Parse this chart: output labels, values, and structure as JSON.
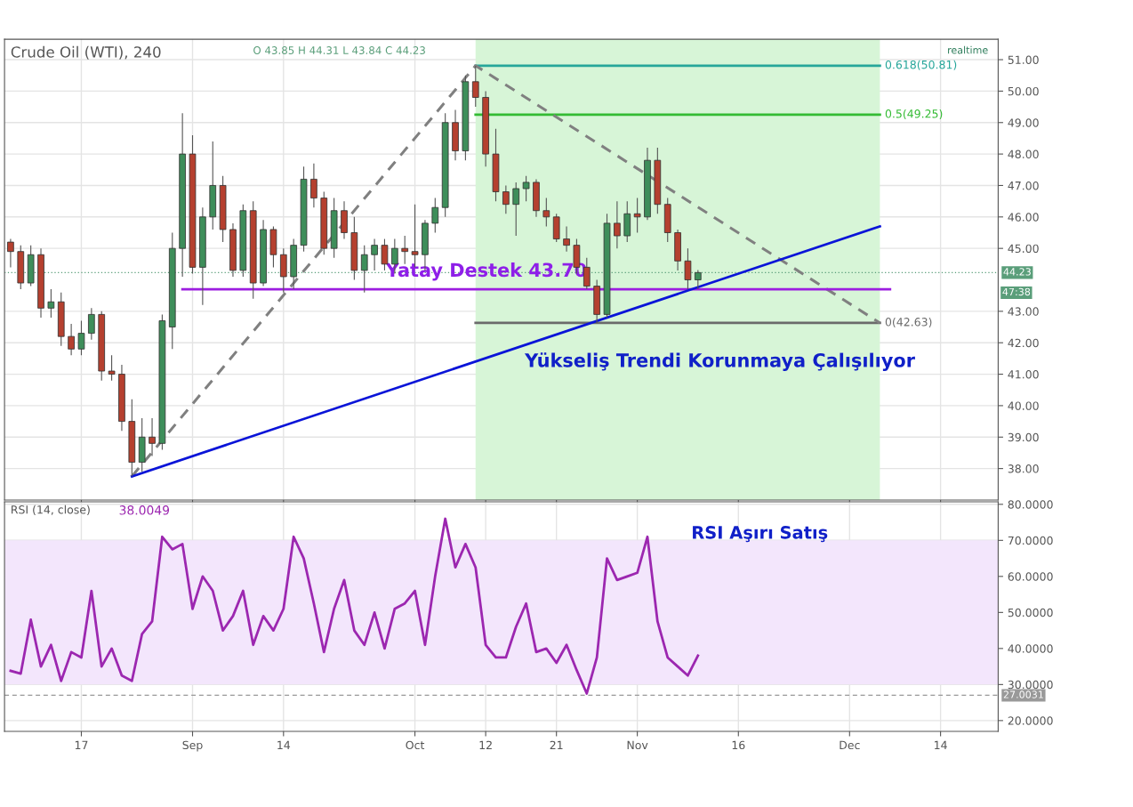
{
  "chart_data": [
    {
      "type": "candlestick",
      "title": "Crude Oil (WTI), 240",
      "subtitle": "O 43.85 H 44.31 L 43.84 C 44.23",
      "categories": [
        null,
        null,
        null,
        null,
        null,
        null,
        null,
        null,
        null,
        null,
        null,
        null,
        null,
        null,
        null,
        null,
        null,
        null,
        null,
        null,
        null,
        null,
        null,
        null,
        null,
        null,
        null,
        null,
        null,
        null,
        null,
        null,
        null,
        null,
        null,
        null,
        null,
        null,
        null,
        null,
        null,
        null,
        null,
        null,
        null,
        null,
        null,
        null,
        null,
        null,
        null,
        null,
        null,
        null,
        null,
        null,
        null,
        null,
        null,
        null,
        null,
        null,
        null,
        null,
        null,
        null,
        null,
        null,
        null,
        null,
        null,
        null,
        null,
        null,
        null,
        null,
        null,
        null,
        null,
        null,
        null,
        null,
        null,
        null,
        null,
        null,
        null,
        null,
        null,
        null,
        null,
        null,
        null,
        null,
        null,
        null,
        null,
        null
      ],
      "ohlc": [
        [
          45.2,
          45.3,
          44.4,
          44.9
        ],
        [
          44.9,
          45.1,
          43.7,
          43.9
        ],
        [
          43.9,
          45.1,
          43.8,
          44.8
        ],
        [
          44.8,
          45.0,
          42.8,
          43.1
        ],
        [
          43.1,
          43.7,
          42.8,
          43.3
        ],
        [
          43.3,
          43.6,
          41.9,
          42.2
        ],
        [
          42.2,
          42.6,
          41.6,
          41.8
        ],
        [
          41.8,
          42.7,
          41.6,
          42.3
        ],
        [
          42.3,
          43.1,
          42.1,
          42.9
        ],
        [
          42.9,
          43.0,
          40.8,
          41.1
        ],
        [
          41.1,
          41.6,
          40.8,
          41.0
        ],
        [
          41.0,
          41.3,
          39.2,
          39.5
        ],
        [
          39.5,
          40.2,
          37.75,
          38.2
        ],
        [
          38.2,
          39.6,
          37.9,
          39.0
        ],
        [
          39.0,
          39.6,
          38.4,
          38.8
        ],
        [
          38.8,
          42.9,
          38.6,
          42.7
        ],
        [
          42.5,
          45.5,
          41.8,
          45.0
        ],
        [
          45.0,
          49.3,
          44.1,
          48.0
        ],
        [
          48.0,
          48.6,
          44.2,
          44.4
        ],
        [
          44.4,
          46.3,
          43.2,
          46.0
        ],
        [
          46.0,
          48.4,
          45.6,
          47.0
        ],
        [
          47.0,
          47.3,
          45.2,
          45.6
        ],
        [
          45.6,
          45.8,
          44.1,
          44.3
        ],
        [
          44.3,
          46.4,
          44.1,
          46.2
        ],
        [
          46.2,
          46.5,
          43.4,
          43.9
        ],
        [
          43.9,
          45.9,
          43.8,
          45.6
        ],
        [
          45.6,
          45.7,
          44.4,
          44.8
        ],
        [
          44.8,
          45.0,
          43.6,
          44.1
        ],
        [
          44.1,
          45.3,
          43.7,
          45.1
        ],
        [
          45.1,
          47.6,
          44.9,
          47.2
        ],
        [
          47.2,
          47.7,
          46.3,
          46.6
        ],
        [
          46.6,
          46.8,
          44.8,
          45.0
        ],
        [
          45.0,
          46.6,
          44.7,
          46.2
        ],
        [
          46.2,
          46.5,
          45.3,
          45.5
        ],
        [
          45.5,
          46.0,
          44.0,
          44.3
        ],
        [
          44.3,
          45.1,
          43.6,
          44.8
        ],
        [
          44.8,
          45.3,
          44.3,
          45.1
        ],
        [
          45.1,
          45.3,
          44.3,
          44.5
        ],
        [
          44.5,
          45.3,
          44.2,
          45.0
        ],
        [
          45.0,
          45.4,
          44.5,
          44.9
        ],
        [
          44.9,
          46.4,
          44.4,
          44.8
        ],
        [
          44.8,
          45.9,
          44.3,
          45.8
        ],
        [
          45.8,
          46.6,
          45.5,
          46.3
        ],
        [
          46.3,
          49.3,
          46.0,
          49.0
        ],
        [
          49.0,
          49.4,
          47.8,
          48.1
        ],
        [
          48.1,
          50.5,
          47.8,
          50.3
        ],
        [
          50.3,
          50.8,
          49.5,
          49.8
        ],
        [
          49.8,
          50.0,
          47.6,
          48.0
        ],
        [
          48.0,
          48.8,
          46.5,
          46.8
        ],
        [
          46.8,
          47.0,
          46.1,
          46.4
        ],
        [
          46.4,
          47.1,
          45.4,
          46.9
        ],
        [
          46.9,
          47.3,
          46.5,
          47.1
        ],
        [
          47.1,
          47.2,
          46.0,
          46.2
        ],
        [
          46.2,
          46.6,
          45.7,
          46.0
        ],
        [
          46.0,
          46.1,
          45.2,
          45.3
        ],
        [
          45.3,
          45.7,
          44.9,
          45.1
        ],
        [
          45.1,
          45.3,
          44.2,
          44.4
        ],
        [
          44.4,
          44.7,
          43.7,
          43.8
        ],
        [
          43.8,
          44.0,
          42.63,
          42.9
        ],
        [
          42.9,
          46.1,
          42.8,
          45.8
        ],
        [
          45.8,
          46.5,
          45.0,
          45.4
        ],
        [
          45.4,
          46.5,
          45.2,
          46.1
        ],
        [
          46.1,
          46.6,
          45.5,
          46.0
        ],
        [
          46.0,
          48.2,
          45.9,
          47.8
        ],
        [
          47.8,
          48.2,
          46.1,
          46.4
        ],
        [
          46.4,
          46.6,
          45.2,
          45.5
        ],
        [
          45.5,
          45.6,
          44.3,
          44.6
        ],
        [
          44.6,
          45.0,
          43.7,
          44.0
        ],
        [
          44.0,
          44.31,
          43.7,
          44.23
        ],
        null,
        null,
        null,
        null,
        null,
        null,
        null,
        null,
        null,
        null,
        null,
        null,
        null,
        null,
        null,
        null,
        null,
        null,
        null,
        null,
        null,
        null,
        null,
        null,
        null,
        null,
        null,
        null,
        null
      ],
      "colors": [
        "#b5402f",
        "#b5402f",
        "#3e8e5a",
        "#b5402f",
        "#3e8e5a",
        "#b5402f",
        "#b5402f",
        "#3e8e5a",
        "#3e8e5a",
        "#b5402f",
        "#b5402f",
        "#b5402f",
        "#b5402f",
        "#3e8e5a",
        "#b5402f",
        "#3e8e5a",
        "#3e8e5a",
        "#3e8e5a",
        "#b5402f",
        "#3e8e5a",
        "#3e8e5a",
        "#b5402f",
        "#b5402f",
        "#3e8e5a",
        "#b5402f",
        "#3e8e5a",
        "#b5402f",
        "#b5402f",
        "#3e8e5a",
        "#3e8e5a",
        "#b5402f",
        "#b5402f",
        "#3e8e5a",
        "#b5402f",
        "#b5402f",
        "#3e8e5a",
        "#3e8e5a",
        "#b5402f",
        "#3e8e5a",
        "#b5402f",
        "#b5402f",
        "#3e8e5a",
        "#3e8e5a",
        "#3e8e5a",
        "#b5402f",
        "#3e8e5a",
        "#b5402f",
        "#b5402f",
        "#b5402f",
        "#b5402f",
        "#3e8e5a",
        "#3e8e5a",
        "#b5402f",
        "#b5402f",
        "#b5402f",
        "#b5402f",
        "#b5402f",
        "#b5402f",
        "#b5402f",
        "#3e8e5a",
        "#b5402f",
        "#3e8e5a",
        "#b5402f",
        "#3e8e5a",
        "#b5402f",
        "#b5402f",
        "#b5402f",
        "#b5402f",
        "#3e8e5a",
        null,
        null,
        null,
        null,
        null,
        null,
        null,
        null,
        null,
        null,
        null,
        null,
        null,
        null,
        null,
        null,
        null,
        null,
        null,
        null,
        null,
        null,
        null,
        null,
        null,
        null,
        null,
        null,
        null
      ],
      "series": [
        {
          "type": "line",
          "name": "0.618(50.81)",
          "color": "#26a69a",
          "values": [
            null,
            null,
            null,
            null,
            null,
            null,
            null,
            null,
            null,
            null,
            null,
            null,
            null,
            null,
            null,
            null,
            null,
            null,
            null,
            null,
            null,
            null,
            null,
            null,
            null,
            null,
            null,
            null,
            null,
            null,
            null,
            null,
            null,
            null,
            null,
            null,
            null,
            null,
            null,
            null,
            null,
            null,
            null,
            null,
            null,
            null,
            50.81,
            null,
            null,
            null,
            null,
            null,
            null,
            null,
            null,
            null,
            null,
            null,
            null,
            null,
            null,
            null,
            null,
            null,
            null,
            null,
            null,
            null,
            null,
            null,
            null,
            null,
            null,
            null,
            null,
            null,
            null,
            null,
            null,
            null,
            null,
            null,
            null,
            null,
            null,
            null,
            50.81,
            null,
            null,
            null,
            null,
            null,
            null,
            null,
            null,
            null,
            null,
            null
          ]
        },
        {
          "type": "line",
          "name": "0.5(49.25)",
          "color": "#33bb33",
          "values": [
            null,
            null,
            null,
            null,
            null,
            null,
            null,
            null,
            null,
            null,
            null,
            null,
            null,
            null,
            null,
            null,
            null,
            null,
            null,
            null,
            null,
            null,
            null,
            null,
            null,
            null,
            null,
            null,
            null,
            null,
            null,
            null,
            null,
            null,
            null,
            null,
            null,
            null,
            null,
            null,
            null,
            null,
            null,
            null,
            null,
            null,
            49.25,
            null,
            null,
            null,
            null,
            null,
            null,
            null,
            null,
            null,
            null,
            null,
            null,
            null,
            null,
            null,
            null,
            null,
            null,
            null,
            null,
            null,
            null,
            null,
            null,
            null,
            null,
            null,
            null,
            null,
            null,
            null,
            null,
            null,
            null,
            null,
            null,
            null,
            null,
            null,
            49.25,
            null,
            null,
            null,
            null,
            null,
            null,
            null,
            null,
            null,
            null,
            null
          ]
        },
        {
          "type": "line",
          "name": "0(42.63)",
          "color": "#6b6b6b",
          "values": [
            null,
            null,
            null,
            null,
            null,
            null,
            null,
            null,
            null,
            null,
            null,
            null,
            null,
            null,
            null,
            null,
            null,
            null,
            null,
            null,
            null,
            null,
            null,
            null,
            null,
            null,
            null,
            null,
            null,
            null,
            null,
            null,
            null,
            null,
            null,
            null,
            null,
            null,
            null,
            null,
            null,
            null,
            null,
            null,
            null,
            null,
            42.63,
            null,
            null,
            null,
            null,
            null,
            null,
            null,
            null,
            null,
            null,
            null,
            null,
            null,
            null,
            null,
            null,
            null,
            null,
            null,
            null,
            null,
            null,
            null,
            null,
            null,
            null,
            null,
            null,
            null,
            null,
            null,
            null,
            null,
            null,
            null,
            null,
            null,
            null,
            null,
            42.63,
            null,
            null,
            null,
            null,
            null,
            null,
            null,
            null,
            null,
            null,
            null
          ]
        },
        {
          "type": "line",
          "color": "#808080",
          "line_style": "dashed",
          "values": [
            null,
            null,
            null,
            null,
            null,
            null,
            null,
            null,
            null,
            null,
            null,
            null,
            37.75,
            null,
            null,
            null,
            null,
            null,
            null,
            null,
            null,
            null,
            null,
            null,
            null,
            null,
            null,
            null,
            null,
            null,
            null,
            null,
            null,
            null,
            null,
            null,
            null,
            null,
            null,
            null,
            null,
            null,
            null,
            null,
            null,
            null,
            50.81,
            null,
            null,
            null,
            null,
            null,
            null,
            null,
            null,
            null,
            null,
            null,
            null,
            null,
            null,
            null,
            null,
            null,
            null,
            null,
            null,
            null,
            null,
            null,
            null,
            null,
            null,
            null,
            null,
            null,
            null,
            null,
            null,
            null,
            null,
            null,
            null,
            null,
            null,
            null,
            42.63,
            null,
            null,
            null,
            null,
            null,
            null,
            null,
            null,
            null,
            null,
            null
          ]
        },
        {
          "type": "line",
          "color": "#9c1de0",
          "values": [
            null,
            null,
            null,
            null,
            null,
            null,
            null,
            null,
            null,
            null,
            null,
            null,
            null,
            null,
            null,
            null,
            null,
            43.7,
            null,
            null,
            null,
            null,
            null,
            null,
            null,
            null,
            null,
            null,
            null,
            null,
            null,
            null,
            null,
            null,
            null,
            null,
            null,
            null,
            null,
            null,
            null,
            null,
            null,
            null,
            null,
            null,
            null,
            null,
            null,
            null,
            null,
            null,
            null,
            null,
            null,
            null,
            null,
            null,
            null,
            null,
            null,
            null,
            null,
            null,
            null,
            null,
            null,
            null,
            null,
            null,
            null,
            null,
            null,
            null,
            null,
            null,
            null,
            null,
            null,
            null,
            null,
            null,
            null,
            null,
            null,
            null,
            null,
            43.7,
            null,
            null,
            null,
            null,
            null,
            null,
            null,
            null,
            null,
            null
          ]
        },
        {
          "type": "line",
          "color": "#0a14d8",
          "values": [
            null,
            null,
            null,
            null,
            null,
            null,
            null,
            null,
            null,
            null,
            null,
            null,
            37.75,
            null,
            null,
            null,
            null,
            null,
            null,
            null,
            null,
            null,
            null,
            null,
            null,
            null,
            null,
            null,
            null,
            null,
            null,
            null,
            null,
            null,
            null,
            null,
            null,
            null,
            null,
            null,
            null,
            null,
            null,
            null,
            null,
            null,
            null,
            null,
            null,
            null,
            null,
            null,
            null,
            null,
            null,
            null,
            null,
            null,
            null,
            null,
            null,
            null,
            null,
            null,
            null,
            null,
            null,
            null,
            null,
            null,
            null,
            null,
            null,
            null,
            null,
            null,
            null,
            null,
            null,
            null,
            null,
            null,
            null,
            null,
            null,
            null,
            45.7,
            null,
            null,
            null,
            null,
            null,
            null,
            null,
            null,
            null,
            null,
            null
          ]
        }
      ],
      "ref_lines": [
        {
          "axis": "y",
          "value": 44.23,
          "label": "44.23",
          "color": "#5a9e7a",
          "line_style": "dotted"
        }
      ],
      "annotations": [
        {
          "text": "Yatay Destek 43.70",
          "y": 43.7
        },
        "Yükseliş Trendi Korunmaya Çalışılıyor",
        "realtime",
        "47:38"
      ],
      "ylim": [
        37.0,
        51.65
      ],
      "yticks": [
        {
          "value": 38,
          "label": "38.00"
        },
        {
          "value": 39,
          "label": "39.00"
        },
        {
          "value": 40,
          "label": "40.00"
        },
        {
          "value": 41,
          "label": "41.00"
        },
        {
          "value": 42,
          "label": "42.00"
        },
        {
          "value": 43,
          "label": "43.00"
        },
        {
          "value": 45,
          "label": "45.00"
        },
        {
          "value": 46,
          "label": "46.00"
        },
        {
          "value": 47,
          "label": "47.00"
        },
        {
          "value": 48,
          "label": "48.00"
        },
        {
          "value": 49,
          "label": "49.00"
        },
        {
          "value": 50,
          "label": "50.00"
        },
        {
          "value": 51,
          "label": "51.00"
        }
      ],
      "tick_labels": "y",
      "grid": true
    },
    {
      "type": "line",
      "title": "RSI (14, close)",
      "subtitle": "38.0049",
      "categories": [
        null,
        null,
        null,
        null,
        null,
        null,
        null,
        "17",
        null,
        null,
        null,
        null,
        null,
        null,
        null,
        null,
        null,
        null,
        "Sep",
        null,
        null,
        null,
        null,
        null,
        null,
        null,
        null,
        "14",
        null,
        null,
        null,
        null,
        null,
        null,
        null,
        null,
        null,
        null,
        null,
        null,
        "Oct",
        null,
        null,
        null,
        null,
        null,
        null,
        "12",
        null,
        null,
        null,
        null,
        null,
        null,
        "21",
        null,
        null,
        null,
        null,
        null,
        null,
        null,
        "Nov",
        null,
        null,
        null,
        null,
        null,
        null,
        null,
        null,
        null,
        "16",
        null,
        null,
        null,
        null,
        null,
        null,
        null,
        null,
        null,
        null,
        "Dec",
        null,
        null,
        null,
        null,
        null,
        null,
        null,
        null,
        "14",
        null,
        null,
        null,
        null,
        null
      ],
      "series": [
        {
          "color": "#9c27b0",
          "values": [
            33.8,
            33,
            48,
            35,
            41,
            31,
            39,
            37.5,
            56,
            35,
            40,
            32.5,
            31,
            44,
            47.5,
            71,
            67.5,
            69,
            51,
            60,
            56,
            45,
            49,
            56,
            41,
            49,
            45,
            51,
            71,
            65,
            52.5,
            39,
            51,
            59,
            45,
            41,
            50,
            40,
            51,
            52.5,
            56,
            41,
            60,
            76,
            62.5,
            69,
            62.5,
            41,
            37.5,
            37.5,
            46,
            52.5,
            39,
            40,
            36,
            41,
            34,
            27.5,
            37.5,
            65,
            59,
            60,
            61,
            71,
            47.5,
            37.5,
            35,
            32.5,
            38.0,
            null,
            null,
            null,
            null,
            null,
            null,
            null,
            null,
            null,
            null,
            null,
            null,
            null,
            null,
            null,
            null,
            null,
            null,
            null,
            null,
            null,
            null,
            null,
            null,
            null,
            null,
            null,
            null,
            null
          ]
        }
      ],
      "bands": [
        {
          "axis": "y",
          "from": 30,
          "to": 70,
          "color": "#f3e6fc"
        }
      ],
      "ref_lines": [
        {
          "axis": "y",
          "value": 27.0031,
          "label": "27.0031",
          "color": "#999999",
          "line_style": "dashed"
        }
      ],
      "annotations": [
        "RSI Aşırı Satış"
      ],
      "ylim": [
        17.0,
        80.7
      ],
      "yticks": [
        {
          "value": 20,
          "label": "20.0000"
        },
        {
          "value": 30,
          "label": "30.0000"
        },
        {
          "value": 40,
          "label": "40.0000"
        },
        {
          "value": 50,
          "label": "50.0000"
        },
        {
          "value": 60,
          "label": "60.0000"
        },
        {
          "value": 70,
          "label": "70.0000"
        },
        {
          "value": 80,
          "label": "80.0000"
        }
      ],
      "grid": true
    }
  ]
}
